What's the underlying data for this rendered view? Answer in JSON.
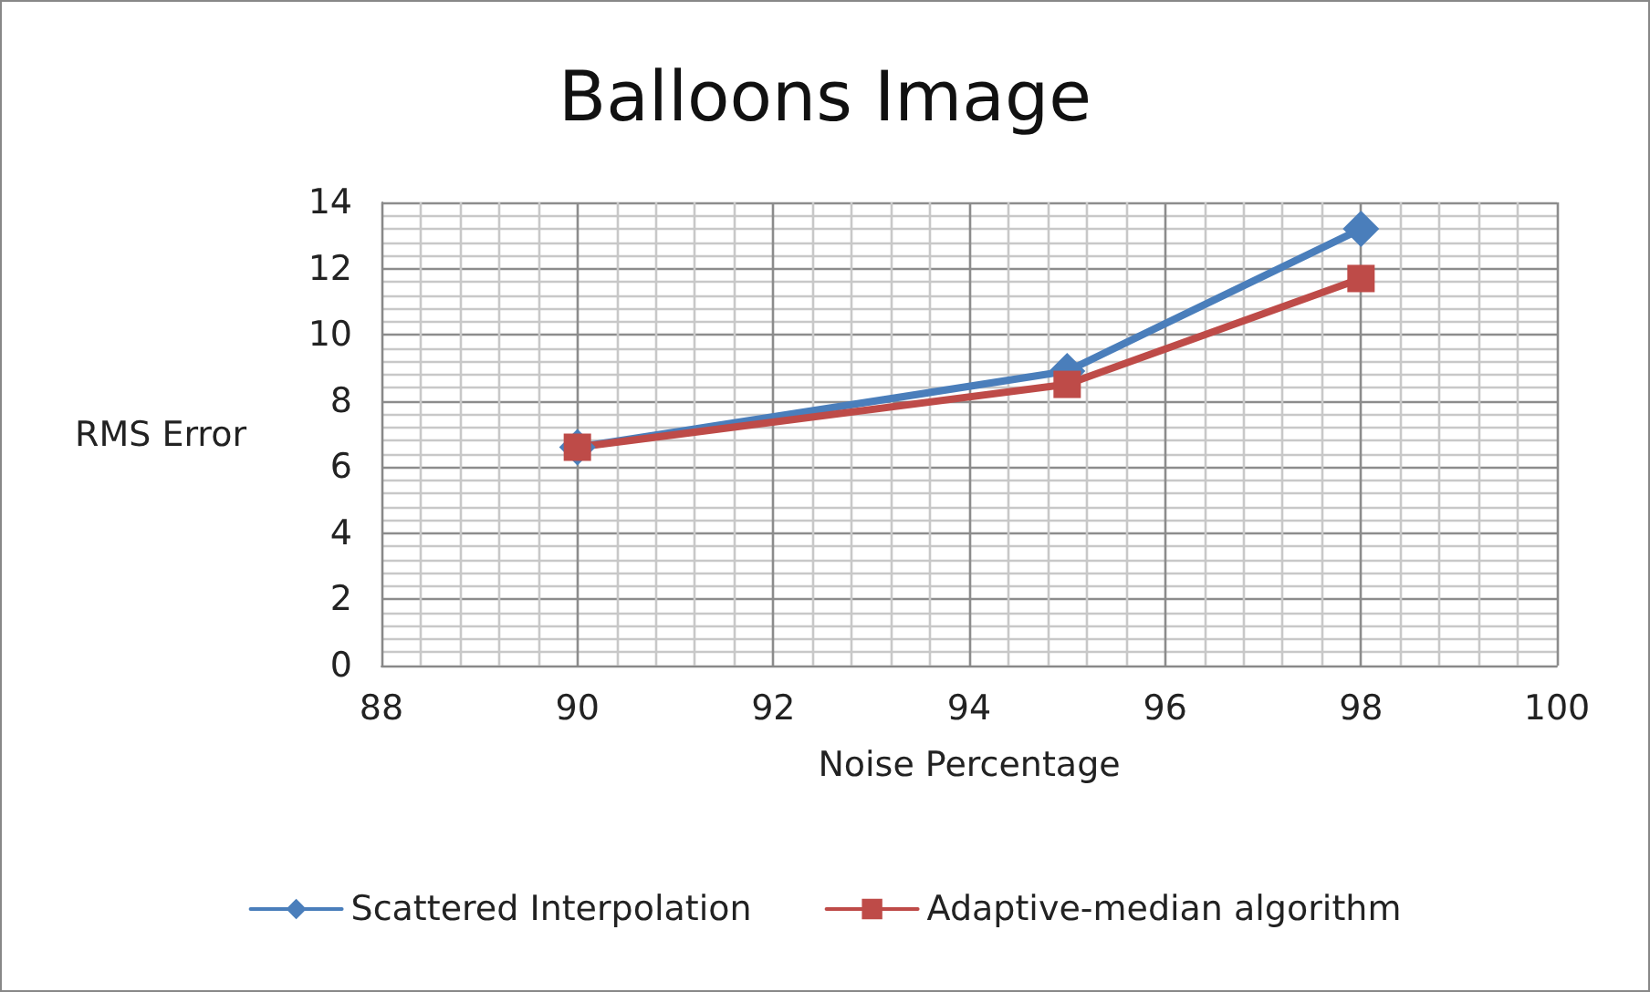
{
  "chart_data": {
    "type": "line",
    "title": "Balloons Image",
    "xlabel": "Noise Percentage",
    "ylabel": "RMS Error",
    "x": [
      90,
      95,
      98
    ],
    "series": [
      {
        "name": "Scattered Interpolation",
        "color": "#4a7ebb",
        "marker": "diamond",
        "values": [
          6.6,
          8.9,
          13.2
        ]
      },
      {
        "name": "Adaptive-median algorithm",
        "color": "#be4b48",
        "marker": "square",
        "values": [
          6.6,
          8.5,
          11.7
        ]
      }
    ],
    "xlim": [
      88,
      100
    ],
    "xticks": [
      88,
      90,
      92,
      94,
      96,
      98,
      100
    ],
    "ylim": [
      0,
      14
    ],
    "yticks": [
      0,
      2,
      4,
      6,
      8,
      10,
      12,
      14
    ],
    "grid": true,
    "legend": "bottom",
    "line_style": "solid"
  }
}
